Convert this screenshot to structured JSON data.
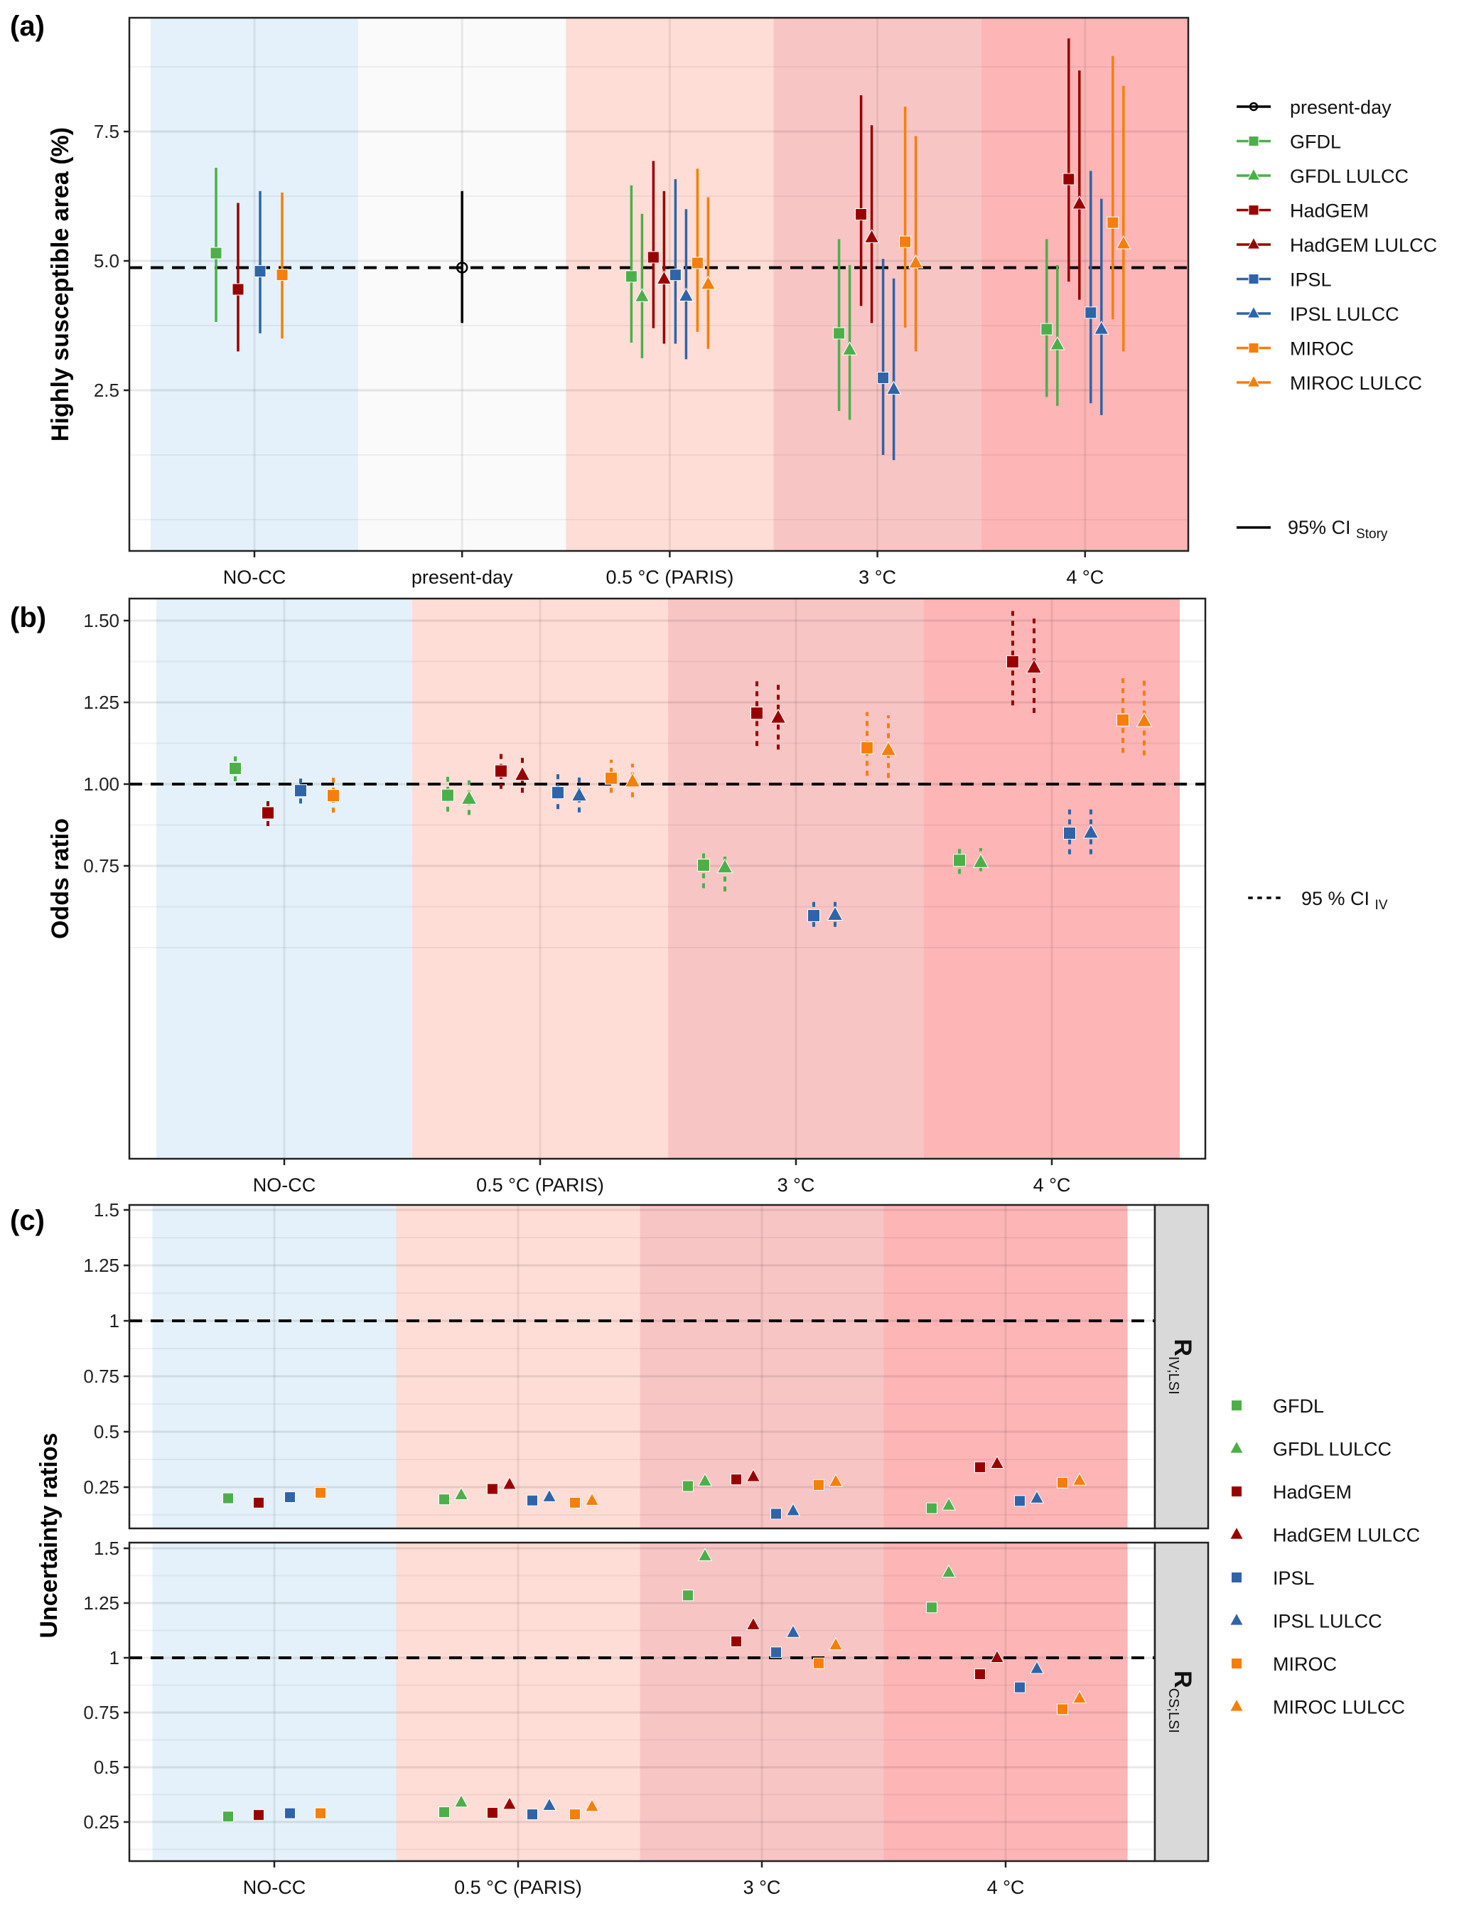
{
  "figure": {
    "panel_tags": [
      "(a)",
      "(b)",
      "(c)"
    ]
  },
  "palette": {
    "GFDL": "#4DAF4A",
    "HadGEM": "#990000",
    "IPSL": "#2F64A8",
    "MIROC": "#F57F0A",
    "present": "#000000",
    "bg_nocc": "#E4F1FA",
    "bg_present": "#FAFAFA",
    "bg_paris": "#FEDDD6",
    "bg_3c": "#F8C5C5",
    "bg_4c": "#FDB5B6"
  },
  "series": [
    {
      "name": "GFDL",
      "model": "GFDL",
      "shape": "square"
    },
    {
      "name": "GFDL LULCC",
      "model": "GFDL",
      "shape": "triangle"
    },
    {
      "name": "HadGEM",
      "model": "HadGEM",
      "shape": "square"
    },
    {
      "name": "HadGEM LULCC",
      "model": "HadGEM",
      "shape": "triangle"
    },
    {
      "name": "IPSL",
      "model": "IPSL",
      "shape": "square"
    },
    {
      "name": "IPSL LULCC",
      "model": "IPSL",
      "shape": "triangle"
    },
    {
      "name": "MIROC",
      "model": "MIROC",
      "shape": "square"
    },
    {
      "name": "MIROC LULCC",
      "model": "MIROC",
      "shape": "triangle"
    }
  ],
  "chart_data": [
    {
      "id": "a",
      "type": "scatter",
      "title": "",
      "xlabel": "",
      "ylabel": "Highly susceptible area (%)",
      "categories": [
        "NO-CC",
        "present-day",
        "0.5 °C (PARIS)",
        "3 °C",
        "4 °C"
      ],
      "yticks": [
        "2.5",
        "5.0",
        "7.5"
      ],
      "ytick_values": [
        2.5,
        5.0,
        7.5
      ],
      "ylim": [
        1.1,
        9.4
      ],
      "grid": true,
      "reference_line": 4.87,
      "error_bar_style": "solid",
      "legend": {
        "placement": "right",
        "entries": [
          "present-day",
          "GFDL",
          "GFDL LULCC",
          "HadGEM",
          "HadGEM LULCC",
          "IPSL",
          "IPSL LULCC",
          "MIROC",
          "MIROC LULCC"
        ],
        "ci_label_main": "95% CI",
        "ci_label_sub": "Story"
      },
      "present_day": {
        "category": "present-day",
        "value": 4.87,
        "low": 3.8,
        "high": 6.35
      },
      "points": [
        {
          "series": "GFDL",
          "category": "NO-CC",
          "value": 5.15,
          "low": 3.82,
          "high": 6.8
        },
        {
          "series": "HadGEM",
          "category": "NO-CC",
          "value": 4.45,
          "low": 3.25,
          "high": 6.12
        },
        {
          "series": "IPSL",
          "category": "NO-CC",
          "value": 4.8,
          "low": 3.6,
          "high": 6.35
        },
        {
          "series": "MIROC",
          "category": "NO-CC",
          "value": 4.73,
          "low": 3.5,
          "high": 6.32
        },
        {
          "series": "GFDL",
          "category": "0.5 °C (PARIS)",
          "value": 4.7,
          "low": 3.42,
          "high": 6.46
        },
        {
          "series": "GFDL LULCC",
          "category": "0.5 °C (PARIS)",
          "value": 4.31,
          "low": 3.12,
          "high": 5.91
        },
        {
          "series": "HadGEM",
          "category": "0.5 °C (PARIS)",
          "value": 5.07,
          "low": 3.7,
          "high": 6.93
        },
        {
          "series": "HadGEM LULCC",
          "category": "0.5 °C (PARIS)",
          "value": 4.65,
          "low": 3.4,
          "high": 6.35
        },
        {
          "series": "IPSL",
          "category": "0.5 °C (PARIS)",
          "value": 4.73,
          "low": 3.4,
          "high": 6.58
        },
        {
          "series": "IPSL LULCC",
          "category": "0.5 °C (PARIS)",
          "value": 4.32,
          "low": 3.1,
          "high": 6.0
        },
        {
          "series": "MIROC",
          "category": "0.5 °C (PARIS)",
          "value": 4.96,
          "low": 3.63,
          "high": 6.78
        },
        {
          "series": "MIROC LULCC",
          "category": "0.5 °C (PARIS)",
          "value": 4.55,
          "low": 3.3,
          "high": 6.23
        },
        {
          "series": "GFDL",
          "category": "3 °C",
          "value": 3.6,
          "low": 2.1,
          "high": 5.42
        },
        {
          "series": "GFDL LULCC",
          "category": "3 °C",
          "value": 3.28,
          "low": 1.93,
          "high": 4.92
        },
        {
          "series": "HadGEM",
          "category": "3 °C",
          "value": 5.9,
          "low": 4.13,
          "high": 8.2
        },
        {
          "series": "HadGEM LULCC",
          "category": "3 °C",
          "value": 5.45,
          "low": 3.8,
          "high": 7.62
        },
        {
          "series": "IPSL",
          "category": "3 °C",
          "value": 2.74,
          "low": 1.25,
          "high": 5.04
        },
        {
          "series": "IPSL LULCC",
          "category": "3 °C",
          "value": 2.52,
          "low": 1.15,
          "high": 4.66
        },
        {
          "series": "MIROC",
          "category": "3 °C",
          "value": 5.37,
          "low": 3.71,
          "high": 7.98
        },
        {
          "series": "MIROC LULCC",
          "category": "3 °C",
          "value": 4.96,
          "low": 3.25,
          "high": 7.41
        },
        {
          "series": "GFDL",
          "category": "4 °C",
          "value": 3.68,
          "low": 2.37,
          "high": 5.42
        },
        {
          "series": "GFDL LULCC",
          "category": "4 °C",
          "value": 3.38,
          "low": 2.2,
          "high": 4.92
        },
        {
          "series": "HadGEM",
          "category": "4 °C",
          "value": 6.58,
          "low": 4.6,
          "high": 9.3
        },
        {
          "series": "HadGEM LULCC",
          "category": "4 °C",
          "value": 6.1,
          "low": 4.25,
          "high": 8.68
        },
        {
          "series": "IPSL",
          "category": "4 °C",
          "value": 4.0,
          "low": 2.25,
          "high": 6.74
        },
        {
          "series": "IPSL LULCC",
          "category": "4 °C",
          "value": 3.68,
          "low": 2.02,
          "high": 6.2
        },
        {
          "series": "MIROC",
          "category": "4 °C",
          "value": 5.74,
          "low": 3.87,
          "high": 8.96
        },
        {
          "series": "MIROC LULCC",
          "category": "4 °C",
          "value": 5.33,
          "low": 3.25,
          "high": 8.38
        }
      ]
    },
    {
      "id": "b",
      "type": "scatter",
      "title": "",
      "xlabel": "",
      "ylabel": "Odds ratio",
      "categories": [
        "NO-CC",
        "0.5 °C (PARIS)",
        "3 °C",
        "4 °C"
      ],
      "yticks": [
        "0.75",
        "1.00",
        "1.25",
        "1.50"
      ],
      "ytick_values": [
        0.75,
        1.0,
        1.25,
        1.5
      ],
      "ylim": [
        0.52,
        1.56
      ],
      "grid": true,
      "reference_line": 1.0,
      "error_bar_style": "dotted",
      "legend": {
        "placement": "right",
        "ci_label_main": "95 % CI",
        "ci_label_sub": "IV"
      },
      "points": [
        {
          "series": "GFDL",
          "category": "NO-CC",
          "value": 1.048,
          "low": 1.013,
          "high": 1.1
        },
        {
          "series": "HadGEM",
          "category": "NO-CC",
          "value": 0.912,
          "low": 0.876,
          "high": 0.956
        },
        {
          "series": "IPSL",
          "category": "NO-CC",
          "value": 0.98,
          "low": 0.945,
          "high": 1.027
        },
        {
          "series": "MIROC",
          "category": "NO-CC",
          "value": 0.965,
          "low": 0.917,
          "high": 1.016
        },
        {
          "series": "GFDL",
          "category": "0.5 °C (PARIS)",
          "value": 0.966,
          "low": 0.92,
          "high": 1.019
        },
        {
          "series": "GFDL LULCC",
          "category": "0.5 °C (PARIS)",
          "value": 0.955,
          "low": 0.91,
          "high": 1.007
        },
        {
          "series": "HadGEM",
          "category": "0.5 °C (PARIS)",
          "value": 1.04,
          "low": 0.99,
          "high": 1.11
        },
        {
          "series": "HadGEM LULCC",
          "category": "0.5 °C (PARIS)",
          "value": 1.028,
          "low": 0.978,
          "high": 1.093
        },
        {
          "series": "IPSL",
          "category": "0.5 °C (PARIS)",
          "value": 0.974,
          "low": 0.928,
          "high": 1.027
        },
        {
          "series": "IPSL LULCC",
          "category": "0.5 °C (PARIS)",
          "value": 0.965,
          "low": 0.918,
          "high": 1.016
        },
        {
          "series": "MIROC",
          "category": "0.5 °C (PARIS)",
          "value": 1.018,
          "low": 0.978,
          "high": 1.07
        },
        {
          "series": "MIROC LULCC",
          "category": "0.5 °C (PARIS)",
          "value": 1.008,
          "low": 0.964,
          "high": 1.058
        },
        {
          "series": "GFDL",
          "category": "3 °C",
          "value": 0.752,
          "low": 0.686,
          "high": 0.8
        },
        {
          "series": "GFDL LULCC",
          "category": "3 °C",
          "value": 0.745,
          "low": 0.676,
          "high": 0.795
        },
        {
          "series": "HadGEM",
          "category": "3 °C",
          "value": 1.217,
          "low": 1.121,
          "high": 1.318
        },
        {
          "series": "HadGEM LULCC",
          "category": "3 °C",
          "value": 1.203,
          "low": 1.11,
          "high": 1.302
        },
        {
          "series": "IPSL",
          "category": "3 °C",
          "value": 0.598,
          "low": 0.568,
          "high": 0.646
        },
        {
          "series": "IPSL LULCC",
          "category": "3 °C",
          "value": 0.6,
          "low": 0.568,
          "high": 0.647
        },
        {
          "series": "MIROC",
          "category": "3 °C",
          "value": 1.111,
          "low": 1.03,
          "high": 1.216
        },
        {
          "series": "MIROC LULCC",
          "category": "3 °C",
          "value": 1.104,
          "low": 1.023,
          "high": 1.206
        },
        {
          "series": "GFDL",
          "category": "4 °C",
          "value": 0.767,
          "low": 0.73,
          "high": 0.806
        },
        {
          "series": "GFDL LULCC",
          "category": "4 °C",
          "value": 0.761,
          "low": 0.738,
          "high": 0.8
        },
        {
          "series": "HadGEM",
          "category": "4 °C",
          "value": 1.374,
          "low": 1.245,
          "high": 1.525
        },
        {
          "series": "HadGEM LULCC",
          "category": "4 °C",
          "value": 1.356,
          "low": 1.222,
          "high": 1.502
        },
        {
          "series": "IPSL",
          "category": "4 °C",
          "value": 0.85,
          "low": 0.79,
          "high": 0.93
        },
        {
          "series": "IPSL LULCC",
          "category": "4 °C",
          "value": 0.851,
          "low": 0.79,
          "high": 0.93
        },
        {
          "series": "MIROC",
          "category": "4 °C",
          "value": 1.196,
          "low": 1.1,
          "high": 1.332
        },
        {
          "series": "MIROC LULCC",
          "category": "4 °C",
          "value": 1.192,
          "low": 1.092,
          "high": 1.325
        }
      ]
    },
    {
      "id": "c",
      "type": "scatter",
      "title": "",
      "xlabel": "",
      "ylabel": "Uncertainty ratios",
      "categories": [
        "NO-CC",
        "0.5 °C (PARIS)",
        "3 °C",
        "4 °C"
      ],
      "yticks": [
        "0.25",
        "0.5",
        "0.75",
        "1",
        "1.25",
        "1.5"
      ],
      "ytick_values": [
        0.25,
        0.5,
        0.75,
        1.0,
        1.25,
        1.5
      ],
      "ylim": [
        0.07,
        1.52
      ],
      "grid": true,
      "reference_line": 1.0,
      "legend": {
        "placement": "right",
        "entries": [
          "GFDL",
          "GFDL LULCC",
          "HadGEM",
          "HadGEM LULCC",
          "IPSL",
          "IPSL LULCC",
          "MIROC",
          "MIROC LULCC"
        ]
      },
      "facets": [
        {
          "strip_main": "R",
          "strip_sub": "IV;LSI",
          "points": [
            {
              "series": "GFDL",
              "category": "NO-CC",
              "value": 0.2
            },
            {
              "series": "HadGEM",
              "category": "NO-CC",
              "value": 0.18
            },
            {
              "series": "IPSL",
              "category": "NO-CC",
              "value": 0.205
            },
            {
              "series": "MIROC",
              "category": "NO-CC",
              "value": 0.225
            },
            {
              "series": "GFDL",
              "category": "0.5 °C (PARIS)",
              "value": 0.195
            },
            {
              "series": "GFDL LULCC",
              "category": "0.5 °C (PARIS)",
              "value": 0.215
            },
            {
              "series": "HadGEM",
              "category": "0.5 °C (PARIS)",
              "value": 0.242
            },
            {
              "series": "HadGEM LULCC",
              "category": "0.5 °C (PARIS)",
              "value": 0.262
            },
            {
              "series": "IPSL",
              "category": "0.5 °C (PARIS)",
              "value": 0.19
            },
            {
              "series": "IPSL LULCC",
              "category": "0.5 °C (PARIS)",
              "value": 0.206
            },
            {
              "series": "MIROC",
              "category": "0.5 °C (PARIS)",
              "value": 0.18
            },
            {
              "series": "MIROC LULCC",
              "category": "0.5 °C (PARIS)",
              "value": 0.19
            },
            {
              "series": "GFDL",
              "category": "3 °C",
              "value": 0.255
            },
            {
              "series": "GFDL LULCC",
              "category": "3 °C",
              "value": 0.277
            },
            {
              "series": "HadGEM",
              "category": "3 °C",
              "value": 0.285
            },
            {
              "series": "HadGEM LULCC",
              "category": "3 °C",
              "value": 0.297
            },
            {
              "series": "IPSL",
              "category": "3 °C",
              "value": 0.13
            },
            {
              "series": "IPSL LULCC",
              "category": "3 °C",
              "value": 0.143
            },
            {
              "series": "MIROC",
              "category": "3 °C",
              "value": 0.26
            },
            {
              "series": "MIROC LULCC",
              "category": "3 °C",
              "value": 0.275
            },
            {
              "series": "GFDL",
              "category": "4 °C",
              "value": 0.155
            },
            {
              "series": "GFDL LULCC",
              "category": "4 °C",
              "value": 0.168
            },
            {
              "series": "HadGEM",
              "category": "4 °C",
              "value": 0.34
            },
            {
              "series": "HadGEM LULCC",
              "category": "4 °C",
              "value": 0.356
            },
            {
              "series": "IPSL",
              "category": "4 °C",
              "value": 0.188
            },
            {
              "series": "IPSL LULCC",
              "category": "4 °C",
              "value": 0.2
            },
            {
              "series": "MIROC",
              "category": "4 °C",
              "value": 0.27
            },
            {
              "series": "MIROC LULCC",
              "category": "4 °C",
              "value": 0.28
            }
          ]
        },
        {
          "strip_main": "R",
          "strip_sub": "CS;LSI",
          "points": [
            {
              "series": "GFDL",
              "category": "NO-CC",
              "value": 0.275
            },
            {
              "series": "HadGEM",
              "category": "NO-CC",
              "value": 0.282
            },
            {
              "series": "IPSL",
              "category": "NO-CC",
              "value": 0.29
            },
            {
              "series": "MIROC",
              "category": "NO-CC",
              "value": 0.29
            },
            {
              "series": "GFDL",
              "category": "0.5 °C (PARIS)",
              "value": 0.295
            },
            {
              "series": "GFDL LULCC",
              "category": "0.5 °C (PARIS)",
              "value": 0.34
            },
            {
              "series": "HadGEM",
              "category": "0.5 °C (PARIS)",
              "value": 0.292
            },
            {
              "series": "HadGEM LULCC",
              "category": "0.5 °C (PARIS)",
              "value": 0.33
            },
            {
              "series": "IPSL",
              "category": "0.5 °C (PARIS)",
              "value": 0.285
            },
            {
              "series": "IPSL LULCC",
              "category": "0.5 °C (PARIS)",
              "value": 0.325
            },
            {
              "series": "MIROC",
              "category": "0.5 °C (PARIS)",
              "value": 0.285
            },
            {
              "series": "MIROC LULCC",
              "category": "0.5 °C (PARIS)",
              "value": 0.32
            },
            {
              "series": "GFDL",
              "category": "3 °C",
              "value": 1.285
            },
            {
              "series": "GFDL LULCC",
              "category": "3 °C",
              "value": 1.465
            },
            {
              "series": "HadGEM",
              "category": "3 °C",
              "value": 1.075
            },
            {
              "series": "HadGEM LULCC",
              "category": "3 °C",
              "value": 1.15
            },
            {
              "series": "IPSL",
              "category": "3 °C",
              "value": 1.025
            },
            {
              "series": "IPSL LULCC",
              "category": "3 °C",
              "value": 1.115
            },
            {
              "series": "MIROC",
              "category": "3 °C",
              "value": 0.975
            },
            {
              "series": "MIROC LULCC",
              "category": "3 °C",
              "value": 1.058
            },
            {
              "series": "GFDL",
              "category": "4 °C",
              "value": 1.23
            },
            {
              "series": "GFDL LULCC",
              "category": "4 °C",
              "value": 1.39
            },
            {
              "series": "HadGEM",
              "category": "4 °C",
              "value": 0.925
            },
            {
              "series": "HadGEM LULCC",
              "category": "4 °C",
              "value": 1.0
            },
            {
              "series": "IPSL",
              "category": "4 °C",
              "value": 0.865
            },
            {
              "series": "IPSL LULCC",
              "category": "4 °C",
              "value": 0.95
            },
            {
              "series": "MIROC",
              "category": "4 °C",
              "value": 0.765
            },
            {
              "series": "MIROC LULCC",
              "category": "4 °C",
              "value": 0.815
            }
          ]
        }
      ]
    }
  ]
}
